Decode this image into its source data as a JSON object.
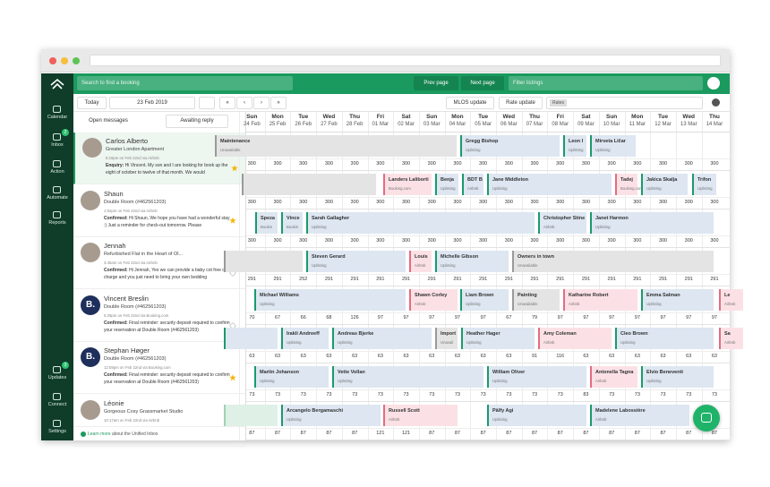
{
  "sidebar": {
    "items": [
      {
        "label": "Calendar"
      },
      {
        "label": "Inbox",
        "badge": 2
      },
      {
        "label": "Action"
      },
      {
        "label": "Automate"
      },
      {
        "label": "Reports"
      },
      {
        "label": "Updates",
        "badge": 3
      },
      {
        "label": "Connect"
      },
      {
        "label": "Settings"
      }
    ]
  },
  "header": {
    "search": "Search to find a booking",
    "prev": "Prev page",
    "next": "Next page",
    "filter": "Filter listings"
  },
  "toolbar": {
    "today": "Today",
    "date": "23 Feb 2019",
    "nav": [
      "«",
      "‹",
      "›",
      "»"
    ],
    "mlos": "MLOS update",
    "rate": "Rate update",
    "rates_tag": "Rates"
  },
  "inbox": {
    "filter_open": "Open messages",
    "filter_awaiting": "Awaiting reply",
    "messages": [
      {
        "name": "Carlos Alberto",
        "listing": "Greater London Apartment",
        "meta": "6:19pm on Feb 22nd via Airbnb",
        "status": "Enquiry:",
        "text": "Hi Vincent. My son and I are looking for book up the eight of october to twelve of that month. We would"
      },
      {
        "name": "Shaun",
        "listing": "Double Room (#462561203)",
        "meta": "1:52pm on Feb 22nd via Airbnb",
        "status": "Confirmed:",
        "text": "Hi Shaun, We hope you have had a wonderful stay :) Just a reminder for check-out tomorrow. Please"
      },
      {
        "name": "Jennah",
        "listing": "Refurbished Flat in the Heart of Ol...",
        "meta": "3:45am on Feb 22nd via Airbnb",
        "status": "Confirmed:",
        "text": "Hi Jennah, Yes we can provide a baby cot free of charge and you just need to bring your own bedding"
      },
      {
        "name": "Vincent Breslin",
        "avatar": "B.",
        "listing": "Double Room (#462561203)",
        "meta": "5:29pm on Feb 22nd via Booking.com",
        "status": "Confirmed:",
        "text": "Final reminder: security deposit required to confirm your reservation at Double Room (#462561203)"
      },
      {
        "name": "Stephan Høger",
        "avatar": "B.",
        "listing": "Double Room (#462561203)",
        "meta": "12:59pm on Feb 22nd via Booking.com",
        "status": "Confirmed:",
        "text": "Final reminder: security deposit required to confirm your reservation at Double Room (#462561203)"
      },
      {
        "name": "Léonie",
        "listing": "Gorgeous Cosy Grassmarket Studio",
        "meta": "10:17am on Feb 22nd via Airbnb"
      }
    ],
    "footer_link": "Learn more",
    "footer_text": "about the Unified Inbox"
  },
  "calendar": {
    "days": [
      {
        "dow": "Sun",
        "date": "24 Feb"
      },
      {
        "dow": "Mon",
        "date": "25 Feb"
      },
      {
        "dow": "Tue",
        "date": "26 Feb"
      },
      {
        "dow": "Wed",
        "date": "27 Feb"
      },
      {
        "dow": "Thu",
        "date": "28 Feb"
      },
      {
        "dow": "Fri",
        "date": "01 Mar"
      },
      {
        "dow": "Sat",
        "date": "02 Mar"
      },
      {
        "dow": "Sun",
        "date": "03 Mar"
      },
      {
        "dow": "Mon",
        "date": "04 Mar"
      },
      {
        "dow": "Tue",
        "date": "05 Mar"
      },
      {
        "dow": "Wed",
        "date": "06 Mar"
      },
      {
        "dow": "Thu",
        "date": "07 Mar"
      },
      {
        "dow": "Fri",
        "date": "08 Mar"
      },
      {
        "dow": "Sat",
        "date": "09 Mar"
      },
      {
        "dow": "Sun",
        "date": "10 Mar"
      },
      {
        "dow": "Mon",
        "date": "11 Mar"
      },
      {
        "dow": "Tue",
        "date": "12 Mar"
      },
      {
        "dow": "Wed",
        "date": "13 Mar"
      },
      {
        "dow": "Thu",
        "date": "14 Mar"
      }
    ],
    "rows": [
      {
        "bookings": [
          {
            "name": "Maintenance",
            "source": "Unavailable"
          },
          {
            "name": "Gregg Bishop",
            "source": "Uplisting"
          },
          {
            "name": "Leon I",
            "source": "Uplisting"
          },
          {
            "name": "Mirveta Ličar",
            "source": "Uplisting"
          }
        ],
        "prices": [
          300,
          300,
          300,
          300,
          300,
          300,
          300,
          300,
          300,
          300,
          300,
          300,
          300,
          300,
          300,
          300,
          300,
          300,
          300
        ]
      },
      {
        "bookings": [
          {
            "name": "Landers Laliborti",
            "source": "Booking.com"
          },
          {
            "name": "Benja",
            "source": "Uplisting"
          },
          {
            "name": "BDT B",
            "source": "Airbnb"
          },
          {
            "name": "Jane Middleton",
            "source": "Uplisting"
          },
          {
            "name": "Tadej",
            "source": "Booking.com"
          },
          {
            "name": "Jakica Skalja",
            "source": "Uplisting"
          },
          {
            "name": "Trifon",
            "source": "Uplisting"
          }
        ],
        "prices": [
          300,
          300,
          300,
          300,
          300,
          300,
          300,
          300,
          300,
          300,
          300,
          300,
          300,
          300,
          300,
          300,
          300,
          300,
          300
        ]
      },
      {
        "bookings": [
          {
            "name": "Speza",
            "source": "Bookin"
          },
          {
            "name": "Vince",
            "source": "Bookin"
          },
          {
            "name": "Sarah Gallagher",
            "source": "Uplisting"
          },
          {
            "name": "Christopher Stine",
            "source": "Airbnb"
          },
          {
            "name": "Janet Harmon",
            "source": "Uplisting"
          }
        ],
        "prices": [
          300,
          300,
          300,
          300,
          300,
          300,
          300,
          300,
          300,
          300,
          300,
          300,
          300,
          300,
          300,
          300,
          300,
          300,
          300
        ]
      },
      {
        "bookings": [
          {
            "name": "Steven Gerard",
            "source": "Uplisting"
          },
          {
            "name": "Louis",
            "source": "Airbnb"
          },
          {
            "name": "Michelle Gibson",
            "source": "Uplisting"
          },
          {
            "name": "Owners in town",
            "source": "Unavailable"
          }
        ],
        "prices": [
          291,
          291,
          252,
          291,
          291,
          291,
          291,
          291,
          291,
          291,
          291,
          291,
          291,
          291,
          291,
          291,
          291,
          291,
          291
        ]
      },
      {
        "bookings": [
          {
            "name": "Michael Williams",
            "source": "Uplisting"
          },
          {
            "name": "Shawn Corley",
            "source": "Airbnb"
          },
          {
            "name": "Liam Brown",
            "source": "Uplisting"
          },
          {
            "name": "Painting",
            "source": "Unavailable"
          },
          {
            "name": "Katharine Robert",
            "source": "Airbnb"
          },
          {
            "name": "Emma Salman",
            "source": "Uplisting"
          },
          {
            "name": "Le",
            "source": "Airbnb"
          }
        ],
        "prices": [
          70,
          67,
          66,
          68,
          126,
          97,
          97,
          97,
          97,
          97,
          67,
          79,
          97,
          97,
          97,
          97,
          97,
          97,
          97
        ]
      },
      {
        "bookings": [
          {
            "name": "Irakli Andreeff",
            "source": "Uplisting"
          },
          {
            "name": "Andreas Bjerke",
            "source": "Uplisting"
          },
          {
            "name": "Import",
            "source": "Unavail"
          },
          {
            "name": "Heather Hager",
            "source": "Uplisting"
          },
          {
            "name": "Amy Coleman",
            "source": "Airbnb"
          },
          {
            "name": "Cleo Brown",
            "source": "Uplisting"
          },
          {
            "name": "Sa",
            "source": "Airbnb"
          }
        ],
        "prices": [
          63,
          63,
          63,
          63,
          63,
          63,
          63,
          63,
          63,
          63,
          63,
          91,
          116,
          63,
          63,
          63,
          63,
          63,
          63
        ]
      },
      {
        "bookings": [
          {
            "name": "Martin Johanson",
            "source": "Uplisting"
          },
          {
            "name": "Vette Vollan",
            "source": "Uplisting"
          },
          {
            "name": "William Oliver",
            "source": "Uplisting"
          },
          {
            "name": "Antonella Tagna",
            "source": "Airbnb"
          },
          {
            "name": "Elvio Beneventi",
            "source": "Uplisting"
          }
        ],
        "prices": [
          73,
          73,
          73,
          73,
          73,
          73,
          73,
          73,
          73,
          73,
          73,
          73,
          73,
          83,
          73,
          73,
          73,
          73,
          73
        ]
      },
      {
        "bookings": [
          {
            "name": "Arcangelo Bergamaschi",
            "source": "Uplisting"
          },
          {
            "name": "Russell Scott",
            "source": "Airbnb"
          },
          {
            "name": "Pälfy Agi",
            "source": "Uplisting"
          },
          {
            "name": "Madelene Labossière",
            "source": "Airbnb"
          }
        ],
        "prices": [
          87,
          87,
          87,
          87,
          87,
          121,
          121,
          87,
          87,
          87,
          87,
          87,
          87,
          87,
          87,
          87,
          87,
          87,
          87
        ]
      }
    ]
  }
}
